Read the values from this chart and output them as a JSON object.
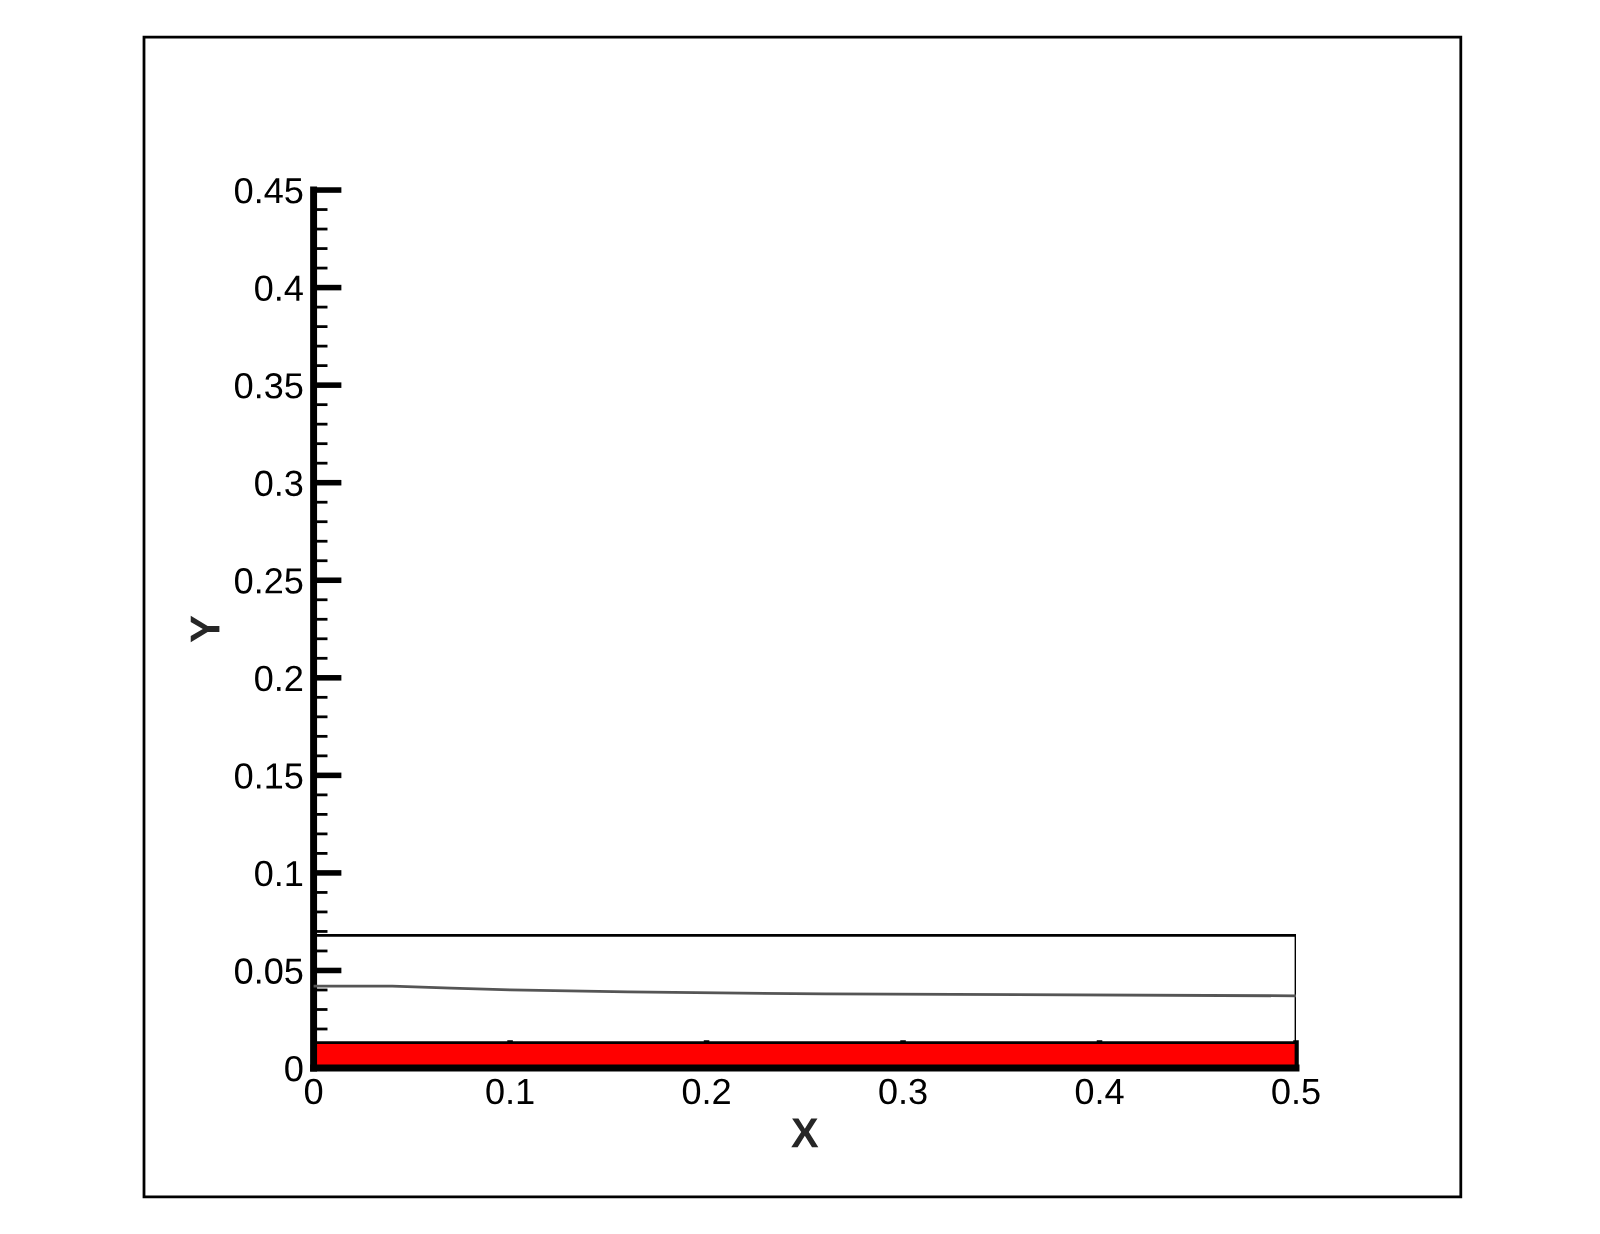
{
  "chart_data": {
    "type": "line",
    "xlabel": "X",
    "ylabel": "Y",
    "xlim": [
      0,
      0.5
    ],
    "ylim": [
      0,
      0.45
    ],
    "xticks": [
      0,
      0.1,
      0.2,
      0.3,
      0.4,
      0.5
    ],
    "yticks": [
      0,
      0.05,
      0.1,
      0.15,
      0.2,
      0.25,
      0.3,
      0.35,
      0.4,
      0.45
    ],
    "grid": false,
    "legend": false,
    "series": [
      {
        "type": "area",
        "color": "#ff0000",
        "x": [
          0,
          0.5
        ],
        "values": [
          0.013,
          0.013
        ]
      },
      {
        "color": "#000000",
        "x": [
          0,
          0,
          0.5,
          0.5
        ],
        "values": [
          0.013,
          0.068,
          0.068,
          0.013
        ]
      },
      {
        "color": "#555555",
        "x": [
          0,
          0.04,
          0.07,
          0.1,
          0.16,
          0.26,
          0.5
        ],
        "values": [
          0.042,
          0.042,
          0.041,
          0.04,
          0.039,
          0.038,
          0.037
        ]
      }
    ]
  }
}
